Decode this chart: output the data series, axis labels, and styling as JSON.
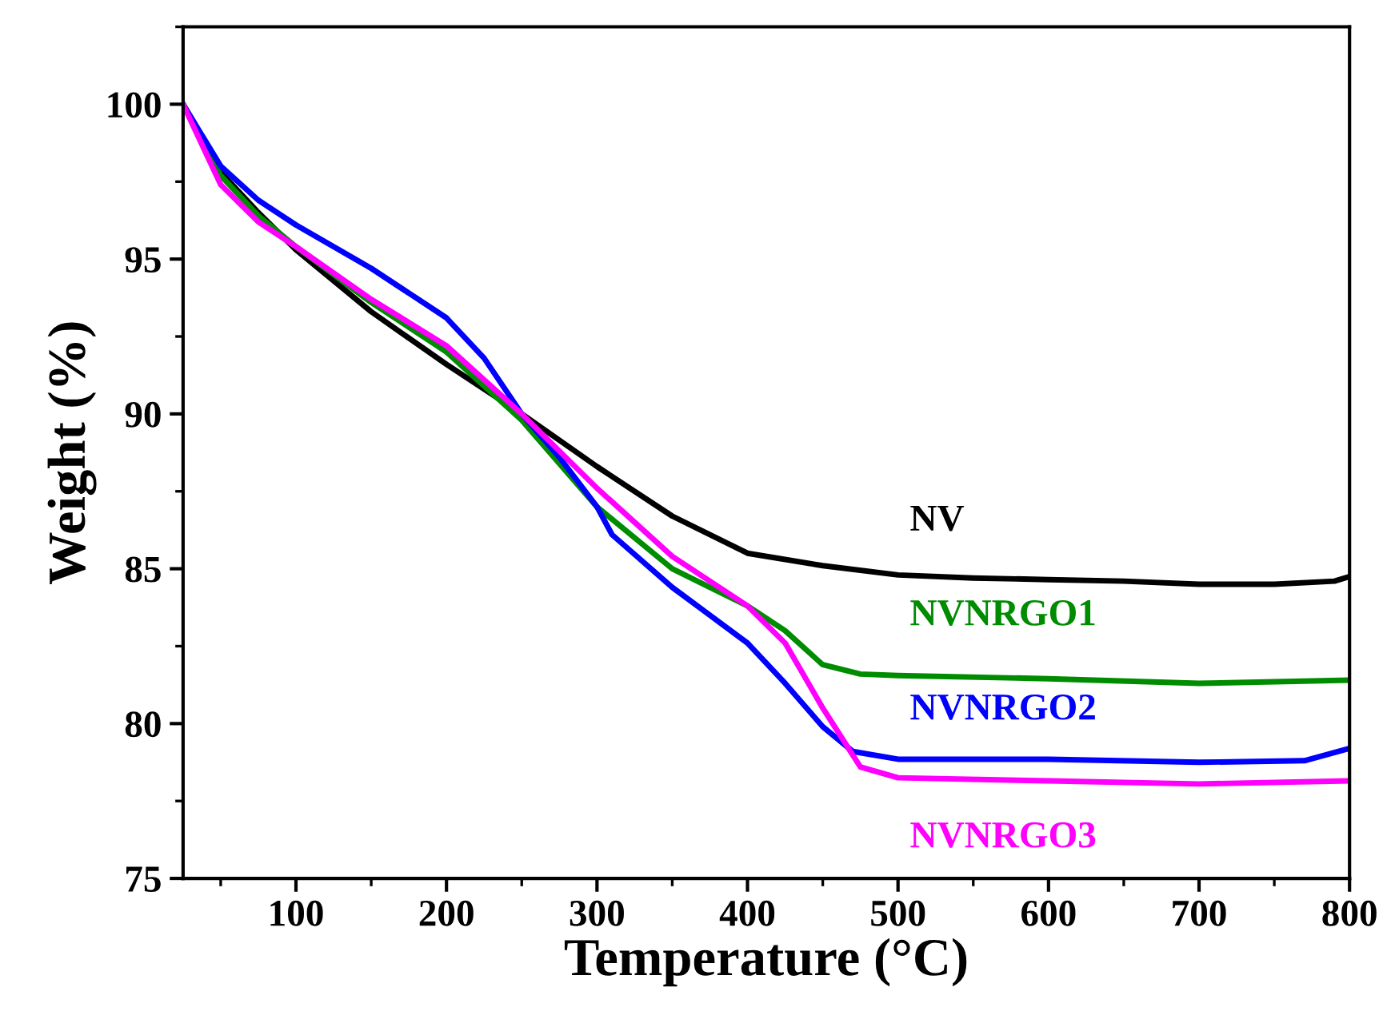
{
  "chart_data": {
    "type": "line",
    "xlabel": "Temperature (°C)",
    "ylabel": "Weight (%)",
    "xlim": [
      25,
      800
    ],
    "xticks": [
      100,
      200,
      300,
      400,
      500,
      600,
      700,
      800
    ],
    "ylim": [
      75,
      102.5
    ],
    "yticks": [
      75,
      80,
      85,
      90,
      95,
      100
    ],
    "grid": false,
    "legend": false,
    "marker": "none",
    "line_style": "solid",
    "series": [
      {
        "name": "NV",
        "color": "#000000",
        "x": [
          25,
          50,
          75,
          100,
          150,
          200,
          250,
          300,
          350,
          400,
          450,
          500,
          550,
          600,
          650,
          700,
          750,
          790,
          800
        ],
        "values": [
          100,
          97.8,
          96.5,
          95.3,
          93.3,
          91.6,
          90.0,
          88.3,
          86.7,
          85.5,
          85.1,
          84.8,
          84.7,
          84.65,
          84.6,
          84.5,
          84.5,
          84.6,
          84.75
        ]
      },
      {
        "name": "NVNRGO1",
        "color": "#008c00",
        "x": [
          25,
          50,
          75,
          100,
          150,
          200,
          250,
          300,
          350,
          400,
          425,
          450,
          475,
          500,
          600,
          700,
          800
        ],
        "values": [
          100,
          97.7,
          96.4,
          95.4,
          93.6,
          92.0,
          89.8,
          87.0,
          85.0,
          83.8,
          83.0,
          81.9,
          81.6,
          81.55,
          81.45,
          81.3,
          81.4
        ]
      },
      {
        "name": "NVNRGO2",
        "color": "#0000ff",
        "x": [
          25,
          50,
          75,
          100,
          150,
          200,
          225,
          250,
          275,
          300,
          310,
          350,
          400,
          425,
          450,
          470,
          500,
          600,
          700,
          770,
          800
        ],
        "values": [
          100,
          98.0,
          96.9,
          96.1,
          94.7,
          93.1,
          91.8,
          90.0,
          88.6,
          87.0,
          86.1,
          84.4,
          82.6,
          81.3,
          79.9,
          79.1,
          78.85,
          78.85,
          78.75,
          78.8,
          79.2
        ]
      },
      {
        "name": "NVNRGO3",
        "color": "#ff00ff",
        "x": [
          25,
          50,
          75,
          100,
          150,
          200,
          250,
          300,
          350,
          400,
          425,
          450,
          475,
          500,
          600,
          700,
          800
        ],
        "values": [
          100,
          97.4,
          96.2,
          95.4,
          93.7,
          92.2,
          90.0,
          87.6,
          85.4,
          83.8,
          82.6,
          80.5,
          78.6,
          78.25,
          78.15,
          78.05,
          78.15
        ]
      }
    ]
  }
}
